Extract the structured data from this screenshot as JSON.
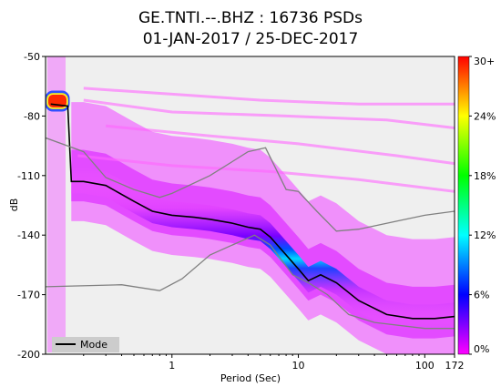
{
  "chart_data": {
    "type": "heatmap",
    "title": "GE.TNTI.--.BHZ : 16736 PSDs",
    "subtitle": "01-JAN-2017 / 25-DEC-2017",
    "xlabel": "Period (Sec)",
    "ylabel": "dB",
    "x_scale": "log",
    "xlim": [
      0.1,
      172
    ],
    "ylim": [
      -200,
      -50
    ],
    "x_ticks": [
      {
        "value": 1,
        "label": "1"
      },
      {
        "value": 10,
        "label": "10"
      },
      {
        "value": 100,
        "label": "100"
      },
      {
        "value": 172,
        "label": "172"
      }
    ],
    "y_ticks": [
      -50,
      -80,
      -110,
      -140,
      -170,
      -200
    ],
    "colorbar": {
      "label_ticks": [
        "0%",
        "6%",
        "12%",
        "18%",
        "24%",
        "30+"
      ],
      "values": [
        0,
        6,
        12,
        18,
        24,
        30
      ],
      "colors": [
        "#ff00ff",
        "#0000ff",
        "#00ffff",
        "#00ff00",
        "#ffff00",
        "#ff0000"
      ]
    },
    "legend": {
      "placement": "bottom-left",
      "label": "Mode",
      "color": "#000000"
    },
    "series": [
      {
        "name": "Mode",
        "color": "#000000",
        "points": [
          [
            0.11,
            -74
          ],
          [
            0.15,
            -75
          ],
          [
            0.16,
            -113
          ],
          [
            0.2,
            -113
          ],
          [
            0.3,
            -115
          ],
          [
            0.5,
            -123
          ],
          [
            0.7,
            -128
          ],
          [
            1.0,
            -130
          ],
          [
            1.5,
            -131
          ],
          [
            2.0,
            -132
          ],
          [
            3.0,
            -134
          ],
          [
            4.0,
            -136
          ],
          [
            5.0,
            -137
          ],
          [
            6.0,
            -141
          ],
          [
            8.0,
            -150
          ],
          [
            10.0,
            -157
          ],
          [
            12.0,
            -163
          ],
          [
            15.0,
            -160
          ],
          [
            20.0,
            -164
          ],
          [
            30.0,
            -173
          ],
          [
            50.0,
            -180
          ],
          [
            80.0,
            -182
          ],
          [
            120.0,
            -182
          ],
          [
            172.0,
            -181
          ]
        ]
      },
      {
        "name": "",
        "color": "#808080",
        "points": [
          [
            0.1,
            -91
          ],
          [
            0.2,
            -98
          ],
          [
            0.3,
            -111
          ],
          [
            0.5,
            -117
          ],
          [
            0.8,
            -121
          ],
          [
            1.0,
            -119
          ],
          [
            2.0,
            -110
          ],
          [
            3.0,
            -103
          ],
          [
            4.0,
            -98
          ],
          [
            5.5,
            -96
          ],
          [
            8.0,
            -117
          ],
          [
            10.0,
            -118
          ],
          [
            14.0,
            -128
          ],
          [
            20.0,
            -138
          ],
          [
            30.0,
            -137
          ],
          [
            60.0,
            -133
          ],
          [
            100.0,
            -130
          ],
          [
            172.0,
            -128
          ]
        ]
      },
      {
        "name": "",
        "color": "#808080",
        "points": [
          [
            0.1,
            -166
          ],
          [
            0.4,
            -165
          ],
          [
            0.8,
            -168
          ],
          [
            1.2,
            -162
          ],
          [
            2.0,
            -150
          ],
          [
            3.0,
            -145
          ],
          [
            4.5,
            -140
          ],
          [
            6.0,
            -145
          ],
          [
            9.0,
            -160
          ],
          [
            12.0,
            -164
          ],
          [
            17.0,
            -170
          ],
          [
            25.0,
            -180
          ],
          [
            40.0,
            -184
          ],
          [
            100.0,
            -187
          ],
          [
            172.0,
            -187
          ]
        ]
      }
    ]
  }
}
